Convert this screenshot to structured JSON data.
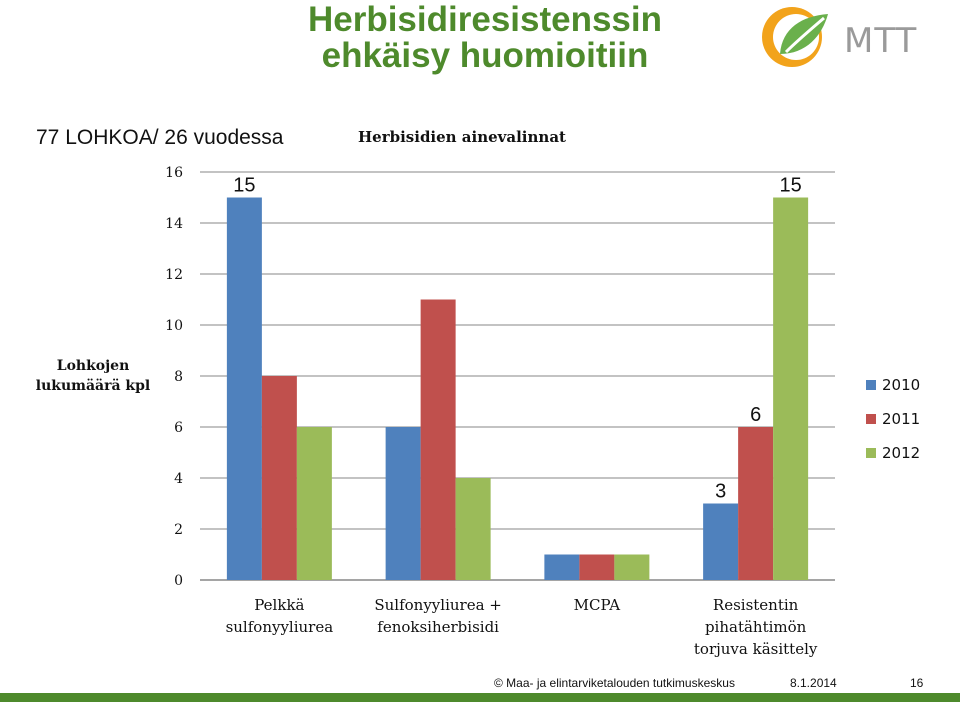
{
  "slide": {
    "title_line1": "Herbisidiresistenssin",
    "title_line2": "ehkäisy huomioitiin",
    "subtitle": "77 LOHKOA/ 26 vuodessa",
    "logo_text": "MTT"
  },
  "footer": {
    "copyright": "© Maa- ja elintarviketalouden tutkimuskeskus",
    "date": "8.1.2014",
    "page_number": "16"
  },
  "colors": {
    "title": "#4e8a2c",
    "series_2010": "#4f81bd",
    "series_2011": "#c0504d",
    "series_2012": "#9bbb59"
  },
  "chart_data": {
    "type": "bar",
    "title": "Herbisidien ainevalinnat",
    "ylabel_lines": [
      "Lohkojen",
      "lukumäärä kpl"
    ],
    "xlabel": "",
    "ylim": [
      0,
      16
    ],
    "yticks": [
      "0",
      "2",
      "4",
      "6",
      "8",
      "10",
      "12",
      "14",
      "16"
    ],
    "categories": [
      [
        "Pelkkä",
        "sulfonyyliurea"
      ],
      [
        "Sulfonyyliurea +",
        "fenoksiherbisidi"
      ],
      [
        "MCPA"
      ],
      [
        "Resistentin",
        "pihatähtimön",
        "torjuva käsittely"
      ]
    ],
    "series": [
      {
        "name": "2010",
        "values": [
          15,
          6,
          1,
          3
        ]
      },
      {
        "name": "2011",
        "values": [
          8,
          11,
          1,
          6
        ]
      },
      {
        "name": "2012",
        "values": [
          6,
          4,
          1,
          15
        ]
      }
    ],
    "annotations": [
      {
        "text": "15",
        "series": 0,
        "category": 0
      },
      {
        "text": "3",
        "series": 0,
        "category": 3
      },
      {
        "text": "6",
        "series": 1,
        "category": 3
      },
      {
        "text": "15",
        "series": 2,
        "category": 3
      }
    ],
    "grid": true,
    "legend": "right"
  }
}
